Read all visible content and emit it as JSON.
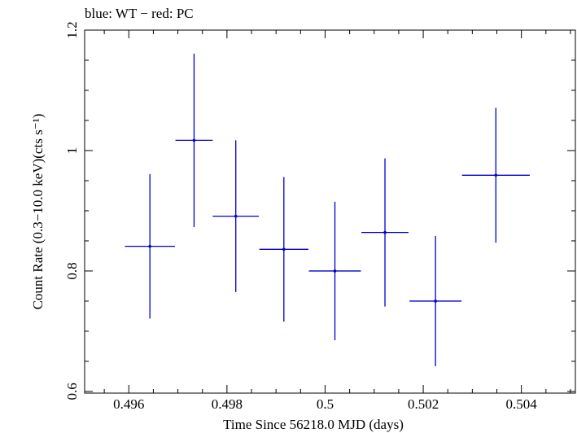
{
  "chart_data": {
    "type": "scatter",
    "title": "blue: WT − red: PC",
    "xlabel": "Time Since 56218.0 MJD (days)",
    "ylabel": "Count Rate (0.3−10.0 keV)(cts s⁻¹)",
    "xlim": [
      0.4951,
      0.5051
    ],
    "ylim": [
      0.5972,
      1.2
    ],
    "x_ticks": [
      0.496,
      0.498,
      0.5,
      0.502,
      0.504
    ],
    "x_tick_labels": [
      "0.496",
      "0.498",
      "0.5",
      "0.502",
      "0.504"
    ],
    "y_ticks": [
      0.6,
      0.8,
      1.0,
      1.2
    ],
    "y_tick_labels": [
      "0.6",
      "0.8",
      "1",
      "1.2"
    ],
    "grid": false,
    "series": [
      {
        "color": "#0000cc",
        "points": [
          {
            "x": 0.49643,
            "xerr": 0.00051,
            "y": 0.841,
            "yerr": 0.12
          },
          {
            "x": 0.49733,
            "xerr": 0.00038,
            "y": 1.017,
            "yerr": 0.144
          },
          {
            "x": 0.49818,
            "xerr": 0.00047,
            "y": 0.891,
            "yerr": 0.126
          },
          {
            "x": 0.49916,
            "xerr": 0.0005,
            "y": 0.836,
            "yerr": 0.12
          },
          {
            "x": 0.5002,
            "xerr": 0.00053,
            "y": 0.8,
            "yerr": 0.115
          },
          {
            "x": 0.50122,
            "xerr": 0.00048,
            "y": 0.864,
            "yerr": 0.123
          },
          {
            "x": 0.50225,
            "xerr": 0.00053,
            "y": 0.75,
            "yerr": 0.108
          },
          {
            "x": 0.50348,
            "xerr": 0.00069,
            "y": 0.959,
            "yerr": 0.112
          }
        ]
      }
    ]
  }
}
